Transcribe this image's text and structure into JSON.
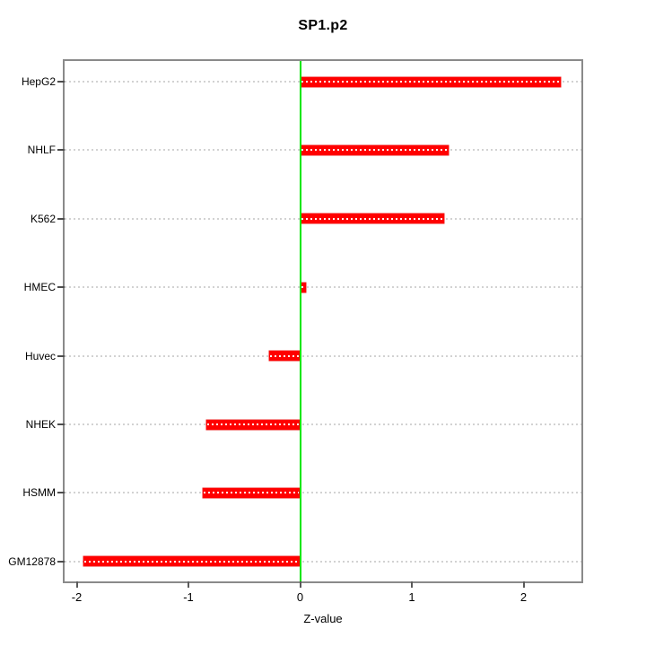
{
  "chart_data": {
    "type": "bar",
    "orientation": "horizontal",
    "title": "SP1.p2",
    "xlabel": "Z-value",
    "ylabel": "",
    "categories": [
      "HepG2",
      "NHLF",
      "K562",
      "HMEC",
      "Huvec",
      "NHEK",
      "HSMM",
      "GM12878"
    ],
    "values": [
      2.33,
      1.33,
      1.29,
      0.05,
      -0.28,
      -0.84,
      -0.87,
      -1.94
    ],
    "xticks": [
      -2,
      -1,
      0,
      1,
      2
    ],
    "xlim": [
      -2.11,
      2.52
    ],
    "zero_reference_line": 0,
    "legend": "none",
    "grid": "dotted-horizontal-per-category",
    "colors": {
      "bar": "#ff0000",
      "bar_center_dots": "#ffffff",
      "zero_line": "#00e600",
      "gridline": "#d2d2d2",
      "box_border": "#8a8a8a",
      "text": "#000000"
    }
  }
}
